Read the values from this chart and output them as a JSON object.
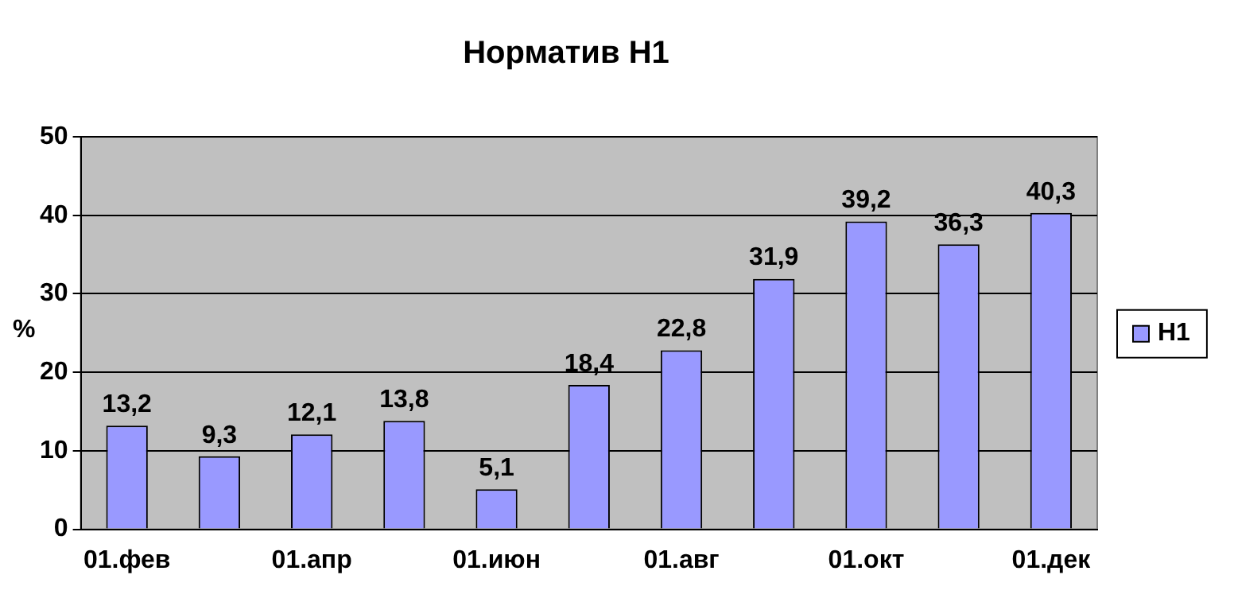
{
  "chart_data": {
    "type": "bar",
    "title": "Норматив Н1",
    "ylabel": "%",
    "categories": [
      "01.фев",
      null,
      "01.апр",
      null,
      "01.июн",
      null,
      "01.авг",
      null,
      "01.окт",
      null,
      "01.дек"
    ],
    "series": [
      {
        "name": "Н1",
        "color": "#9999ff",
        "values": [
          13.2,
          9.3,
          12.1,
          13.8,
          5.1,
          18.4,
          22.8,
          31.9,
          39.2,
          36.3,
          40.3
        ]
      }
    ],
    "value_labels": [
      "13,2",
      "9,3",
      "12,1",
      "13,8",
      "5,1",
      "18,4",
      "22,8",
      "31,9",
      "39,2",
      "36,3",
      "40,3"
    ],
    "ylim": [
      0,
      50
    ],
    "yticks": [
      0,
      10,
      20,
      30,
      40,
      50
    ],
    "grid": "y",
    "legend": "right"
  }
}
